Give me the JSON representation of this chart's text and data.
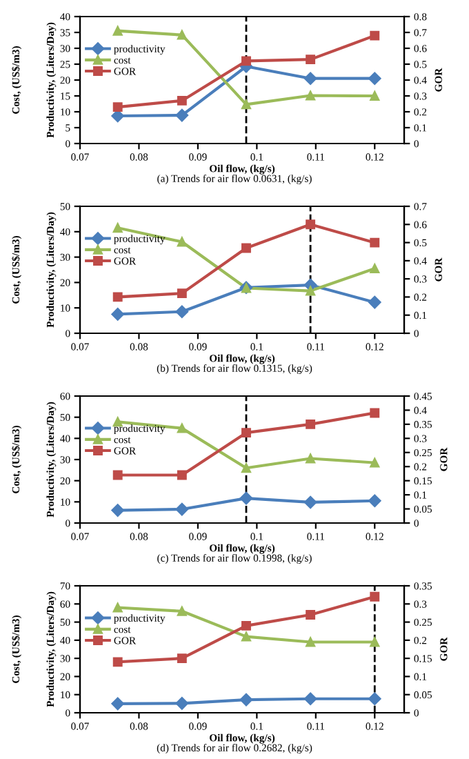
{
  "chart_data": [
    {
      "type": "line",
      "xlabel": "Oil flow, (kg/s)",
      "ylabel": "Productivity, (Liters/Day)",
      "y2label": "GOR",
      "annotations": [
        "Cost, (US$/m3)",
        "(a) Trends for air flow 0.0631, (kg/s)"
      ],
      "x": [
        0.0764,
        0.0873,
        0.0982,
        0.1091,
        0.12
      ],
      "xlim": [
        0.07,
        0.125
      ],
      "xticks": [
        {
          "value": 0.07,
          "label": "0.07"
        },
        {
          "value": 0.08,
          "label": "0.08"
        },
        {
          "value": 0.09,
          "label": "0.09"
        },
        {
          "value": 0.1,
          "label": "0.1"
        },
        {
          "value": 0.11,
          "label": "0.11"
        },
        {
          "value": 0.12,
          "label": "0.12"
        }
      ],
      "ylim": [
        0,
        40
      ],
      "yticks": [
        0,
        5,
        10,
        15,
        20,
        25,
        30,
        35,
        40
      ],
      "y2lim": [
        0,
        0.8
      ],
      "y2ticks": [
        0,
        0.1,
        0.2,
        0.3,
        0.4,
        0.5,
        0.6,
        0.7,
        0.8
      ],
      "grid": false,
      "legend": "left",
      "line_style": "solid",
      "ref_lines": [
        {
          "axis": "x",
          "value": 0.0982,
          "line_style": "dashed",
          "color": "#000000"
        }
      ],
      "series": [
        {
          "name": "productivity",
          "color": "#4a7ebb",
          "marker": "diamond",
          "values": [
            8.7,
            8.9,
            24.3,
            20.5,
            20.5
          ]
        },
        {
          "name": "cost",
          "color": "#9bbb59",
          "marker": "triangle",
          "values": [
            35.5,
            34.2,
            12.3,
            15.1,
            15.0
          ]
        },
        {
          "name": "GOR",
          "color": "#be4b48",
          "marker": "square",
          "axis": "y2",
          "values": [
            0.23,
            0.27,
            0.52,
            0.53,
            0.68
          ]
        }
      ]
    },
    {
      "type": "line",
      "xlabel": "Oil flow, (kg/s)",
      "ylabel": "Productivity, (Liters/Day)",
      "y2label": "GOR",
      "annotations": [
        "Cost, (US$/m3)",
        "(b) Trends for air flow 0.1315, (kg/s)"
      ],
      "x": [
        0.0764,
        0.0873,
        0.0982,
        0.1091,
        0.12
      ],
      "xlim": [
        0.07,
        0.125
      ],
      "xticks": [
        {
          "value": 0.07,
          "label": "0.07"
        },
        {
          "value": 0.08,
          "label": "0.08"
        },
        {
          "value": 0.09,
          "label": "0.09"
        },
        {
          "value": 0.1,
          "label": "0.1"
        },
        {
          "value": 0.11,
          "label": "0.11"
        },
        {
          "value": 0.12,
          "label": "0.12"
        }
      ],
      "ylim": [
        0,
        50
      ],
      "yticks": [
        0,
        10,
        20,
        30,
        40,
        50
      ],
      "y2lim": [
        0,
        0.7
      ],
      "y2ticks": [
        0,
        0.1,
        0.2,
        0.3,
        0.4,
        0.5,
        0.6,
        0.7
      ],
      "grid": false,
      "legend": "left",
      "line_style": "solid",
      "ref_lines": [
        {
          "axis": "x",
          "value": 0.1091,
          "line_style": "dashed",
          "color": "#000000"
        }
      ],
      "series": [
        {
          "name": "productivity",
          "color": "#4a7ebb",
          "marker": "diamond",
          "values": [
            7.5,
            8.5,
            18,
            19,
            12.2
          ]
        },
        {
          "name": "cost",
          "color": "#9bbb59",
          "marker": "triangle",
          "values": [
            41.5,
            36,
            17.8,
            16.7,
            25.5
          ]
        },
        {
          "name": "GOR",
          "color": "#be4b48",
          "marker": "square",
          "axis": "y2",
          "values": [
            0.2,
            0.22,
            0.47,
            0.6,
            0.5
          ]
        }
      ]
    },
    {
      "type": "line",
      "xlabel": "Oil flow, (kg/s)",
      "ylabel": "Productivity, (Liters/Day)",
      "y2label": "GOR",
      "annotations": [
        "Cost, (US$/m3)",
        "(c) Trends for air flow 0.1998, (kg/s)"
      ],
      "x": [
        0.0764,
        0.0873,
        0.0982,
        0.1091,
        0.12
      ],
      "xlim": [
        0.07,
        0.125
      ],
      "xticks": [
        {
          "value": 0.07,
          "label": "0.07"
        },
        {
          "value": 0.08,
          "label": "0.08"
        },
        {
          "value": 0.09,
          "label": "0.09"
        },
        {
          "value": 0.1,
          "label": "0.1"
        },
        {
          "value": 0.11,
          "label": "0.11"
        },
        {
          "value": 0.12,
          "label": "0.12"
        }
      ],
      "ylim": [
        0,
        60
      ],
      "yticks": [
        0,
        10,
        20,
        30,
        40,
        50,
        60
      ],
      "y2lim": [
        0,
        0.45
      ],
      "y2ticks": [
        0,
        0.05,
        0.1,
        0.15,
        0.2,
        0.25,
        0.3,
        0.35,
        0.4,
        0.45
      ],
      "grid": false,
      "legend": "left",
      "line_style": "solid",
      "ref_lines": [
        {
          "axis": "x",
          "value": 0.0982,
          "line_style": "dashed",
          "color": "#000000"
        }
      ],
      "series": [
        {
          "name": "productivity",
          "color": "#4a7ebb",
          "marker": "diamond",
          "values": [
            6,
            6.5,
            11.7,
            9.8,
            10.5
          ]
        },
        {
          "name": "cost",
          "color": "#9bbb59",
          "marker": "triangle",
          "values": [
            47.8,
            44.8,
            26,
            30.5,
            28.5
          ]
        },
        {
          "name": "GOR",
          "color": "#be4b48",
          "marker": "square",
          "axis": "y2",
          "values": [
            0.17,
            0.17,
            0.32,
            0.35,
            0.39
          ]
        }
      ]
    },
    {
      "type": "line",
      "xlabel": "Oil flow, (kg/s)",
      "ylabel": "Productivity, (Liters/Day)",
      "y2label": "GOR",
      "annotations": [
        "Cost, (US$/m3)",
        "(d) Trends for air flow 0.2682, (kg/s)"
      ],
      "x": [
        0.0764,
        0.0873,
        0.0982,
        0.1091,
        0.12
      ],
      "xlim": [
        0.07,
        0.125
      ],
      "xticks": [
        {
          "value": 0.07,
          "label": "0.07"
        },
        {
          "value": 0.08,
          "label": "0.08"
        },
        {
          "value": 0.09,
          "label": "0.09"
        },
        {
          "value": 0.1,
          "label": "0.1"
        },
        {
          "value": 0.11,
          "label": "0.11"
        },
        {
          "value": 0.12,
          "label": "0.12"
        }
      ],
      "ylim": [
        0,
        70
      ],
      "yticks": [
        0,
        10,
        20,
        30,
        40,
        50,
        60,
        70
      ],
      "y2lim": [
        0,
        0.35
      ],
      "y2ticks": [
        0,
        0.05,
        0.1,
        0.15,
        0.2,
        0.25,
        0.3,
        0.35
      ],
      "grid": false,
      "legend": "left",
      "line_style": "solid",
      "ref_lines": [
        {
          "axis": "x",
          "value": 0.12,
          "line_style": "dashed",
          "color": "#000000"
        }
      ],
      "series": [
        {
          "name": "productivity",
          "color": "#4a7ebb",
          "marker": "diamond",
          "values": [
            5,
            5.2,
            7.2,
            7.7,
            7.7
          ]
        },
        {
          "name": "cost",
          "color": "#9bbb59",
          "marker": "triangle",
          "values": [
            58,
            56,
            42,
            39,
            39
          ]
        },
        {
          "name": "GOR",
          "color": "#be4b48",
          "marker": "square",
          "axis": "y2",
          "values": [
            0.14,
            0.15,
            0.24,
            0.27,
            0.32
          ]
        }
      ]
    }
  ]
}
